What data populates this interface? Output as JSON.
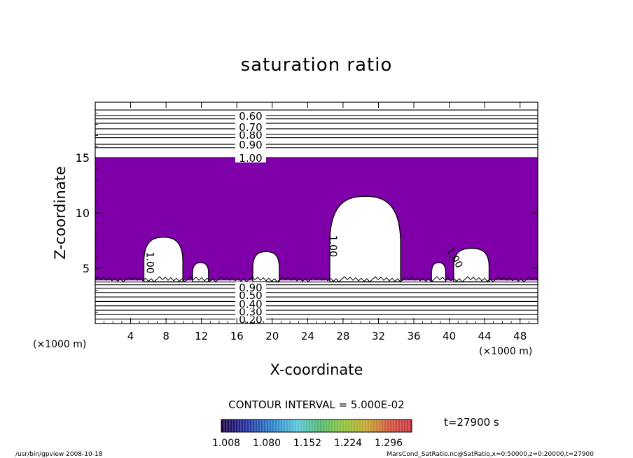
{
  "chart_data": {
    "type": "heatmap",
    "title": "saturation ratio",
    "xlabel": "X-coordinate",
    "ylabel": "Z-coordinate",
    "x_unit_left": "(×1000 m)",
    "x_unit_right": "(×1000 m)",
    "xlim": [
      0,
      50
    ],
    "ylim": [
      0,
      20
    ],
    "x_ticks": [
      4,
      8,
      12,
      16,
      20,
      24,
      28,
      32,
      36,
      40,
      44,
      48
    ],
    "y_ticks": [
      5,
      10,
      15
    ],
    "contour_interval_label": "CONTOUR INTERVAL = 5.000E-02",
    "shaded_region": {
      "level_min": 1.0,
      "z_bottom": 3.9,
      "z_top": 15.0,
      "color": "#7f00a8",
      "clear_regions": [
        {
          "x_center": 7.7,
          "half_width": 2.2,
          "z_top": 7.8
        },
        {
          "x_center": 11.9,
          "half_width": 0.9,
          "z_top": 5.5
        },
        {
          "x_center": 19.3,
          "half_width": 1.5,
          "z_top": 6.5
        },
        {
          "x_center": 30.5,
          "half_width": 4.0,
          "z_top": 11.5
        },
        {
          "x_center": 38.8,
          "half_width": 0.8,
          "z_top": 5.5
        },
        {
          "x_center": 42.5,
          "half_width": 2.0,
          "z_top": 6.8
        }
      ]
    },
    "upper_contours": {
      "z_values": [
        15.0,
        15.9,
        16.2,
        16.8,
        17.1,
        17.6,
        18.1,
        18.5,
        18.8,
        19.3
      ],
      "labels": [
        {
          "text": "1.00",
          "z": 15.0
        },
        {
          "text": "0.90",
          "z": 16.2
        },
        {
          "text": "0.80",
          "z": 17.1
        },
        {
          "text": "0.70",
          "z": 17.8
        },
        {
          "text": "0.60",
          "z": 18.8
        }
      ]
    },
    "lower_contours": {
      "z_values": [
        0.4,
        0.8,
        1.2,
        1.6,
        2.0,
        2.4,
        2.8,
        3.2,
        3.5,
        3.75
      ],
      "labels": [
        {
          "text": "0.20",
          "z": 0.4
        },
        {
          "text": "0.30",
          "z": 1.1
        },
        {
          "text": "0.40",
          "z": 1.8
        },
        {
          "text": "0.50",
          "z": 2.6
        },
        {
          "text": "0.90",
          "z": 3.3
        }
      ]
    },
    "inline_labels": [
      {
        "text": "1.00",
        "x": 5.8,
        "z": 5.5,
        "rotate": 90
      },
      {
        "text": "1.00",
        "x": 26.5,
        "z": 7.0,
        "rotate": 90
      },
      {
        "text": "1.00",
        "x": 40.3,
        "z": 5.8,
        "rotate": 60
      }
    ],
    "colorbar": {
      "tick_labels": [
        "1.008",
        "1.080",
        "1.152",
        "1.224",
        "1.296"
      ],
      "range": [
        1.008,
        1.296
      ]
    },
    "time_label": "t=27900 s"
  },
  "footer": {
    "left": "/usr/bin/gpview   2008-10-18",
    "right": "MarsCond_SatRatio.nc@SatRatio,x=0:50000,z=0:20000,t=27900"
  }
}
